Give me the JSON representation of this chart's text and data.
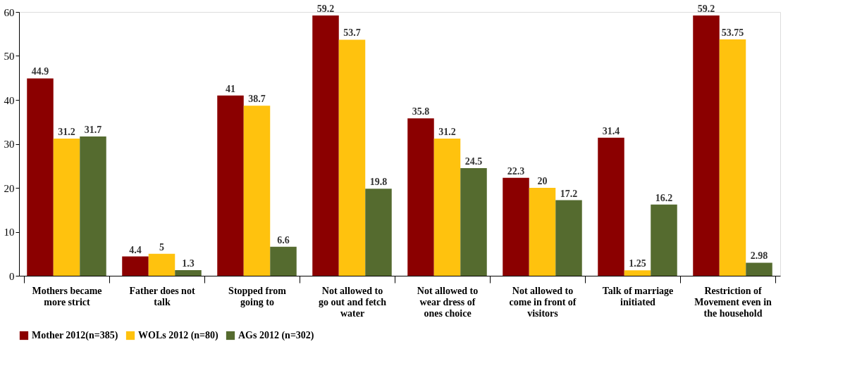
{
  "chart_data": {
    "type": "bar",
    "categories": [
      "Mothers became more strict",
      "Father does not talk",
      "Stopped from going to",
      "Not allowed to go out and fetch water",
      "Not allowed to wear dress of ones choice",
      "Not allowed to come in front of visitors",
      "Talk of marriage initiated",
      "Restriction of Movement even in the household"
    ],
    "series": [
      {
        "name": "Mother 2012(n=385)",
        "color": "#8b0000",
        "values": [
          44.9,
          4.4,
          41,
          59.2,
          35.8,
          22.3,
          31.4,
          59.2
        ]
      },
      {
        "name": "WOLs 2012 (n=80)",
        "color": "#ffc20e",
        "values": [
          31.2,
          5,
          38.7,
          53.7,
          31.2,
          20,
          1.25,
          53.75
        ]
      },
      {
        "name": "AGs 2012 (n=302)",
        "color": "#556b2f",
        "values": [
          31.7,
          1.3,
          6.6,
          19.8,
          24.5,
          17.2,
          16.2,
          2.98
        ]
      }
    ],
    "ylim": [
      0,
      60
    ],
    "yticks": [
      0,
      10,
      20,
      30,
      40,
      50,
      60
    ],
    "data_labels": true,
    "grid": false,
    "legend": "bottom"
  }
}
